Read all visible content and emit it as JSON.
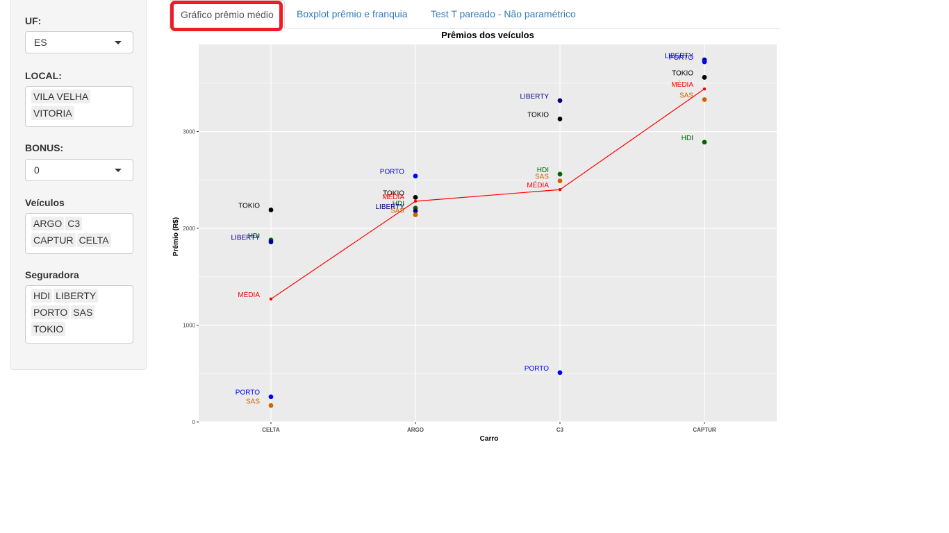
{
  "sidebar": {
    "uf": {
      "label": "UF:",
      "value": "ES"
    },
    "local": {
      "label": "LOCAL:",
      "values": [
        "VILA VELHA",
        "VITORIA"
      ]
    },
    "bonus": {
      "label": "BONUS:",
      "value": "0"
    },
    "veiculos": {
      "label": "Veículos",
      "values": [
        "ARGO",
        "C3",
        "CAPTUR",
        "CELTA"
      ]
    },
    "seguradora": {
      "label": "Seguradora",
      "values": [
        "HDI",
        "LIBERTY",
        "PORTO",
        "SAS",
        "TOKIO"
      ]
    }
  },
  "tabs": [
    {
      "label": "Gráfico prêmio médio",
      "active": true
    },
    {
      "label": "Boxplot prêmio e franquia",
      "active": false
    },
    {
      "label": "Test T pareado - Não paramétrico",
      "active": false
    }
  ],
  "colors": {
    "HDI": "#006400",
    "LIBERTY": "#00008B",
    "PORTO": "#0000FF",
    "SAS": "#CD6600",
    "TOKIO": "#000000",
    "MÉDIA": "#FF0000",
    "panel": "#EBEBEB",
    "highlight": "#EE1C25"
  },
  "chart_data": {
    "type": "scatter",
    "title": "Prêmios dos veículos",
    "xlabel": "Carro",
    "ylabel": "Prêmio (R$)",
    "categories": [
      "CELTA",
      "ARGO",
      "C3",
      "CAPTUR"
    ],
    "ylim": [
      0,
      3900
    ],
    "yticks": [
      0,
      1000,
      2000,
      3000
    ],
    "grid": true,
    "legend": "none",
    "series": [
      {
        "name": "HDI",
        "values": [
          1880,
          2210,
          2560,
          2890
        ]
      },
      {
        "name": "LIBERTY",
        "values": [
          1860,
          2180,
          3320,
          3740
        ]
      },
      {
        "name": "PORTO",
        "values": [
          260,
          2540,
          510,
          3720
        ]
      },
      {
        "name": "SAS",
        "values": [
          170,
          2140,
          2490,
          3330
        ]
      },
      {
        "name": "TOKIO",
        "values": [
          2190,
          2320,
          3130,
          3560
        ]
      },
      {
        "name": "MÉDIA",
        "values": [
          1270,
          2280,
          2400,
          3440
        ],
        "line": true
      }
    ]
  }
}
